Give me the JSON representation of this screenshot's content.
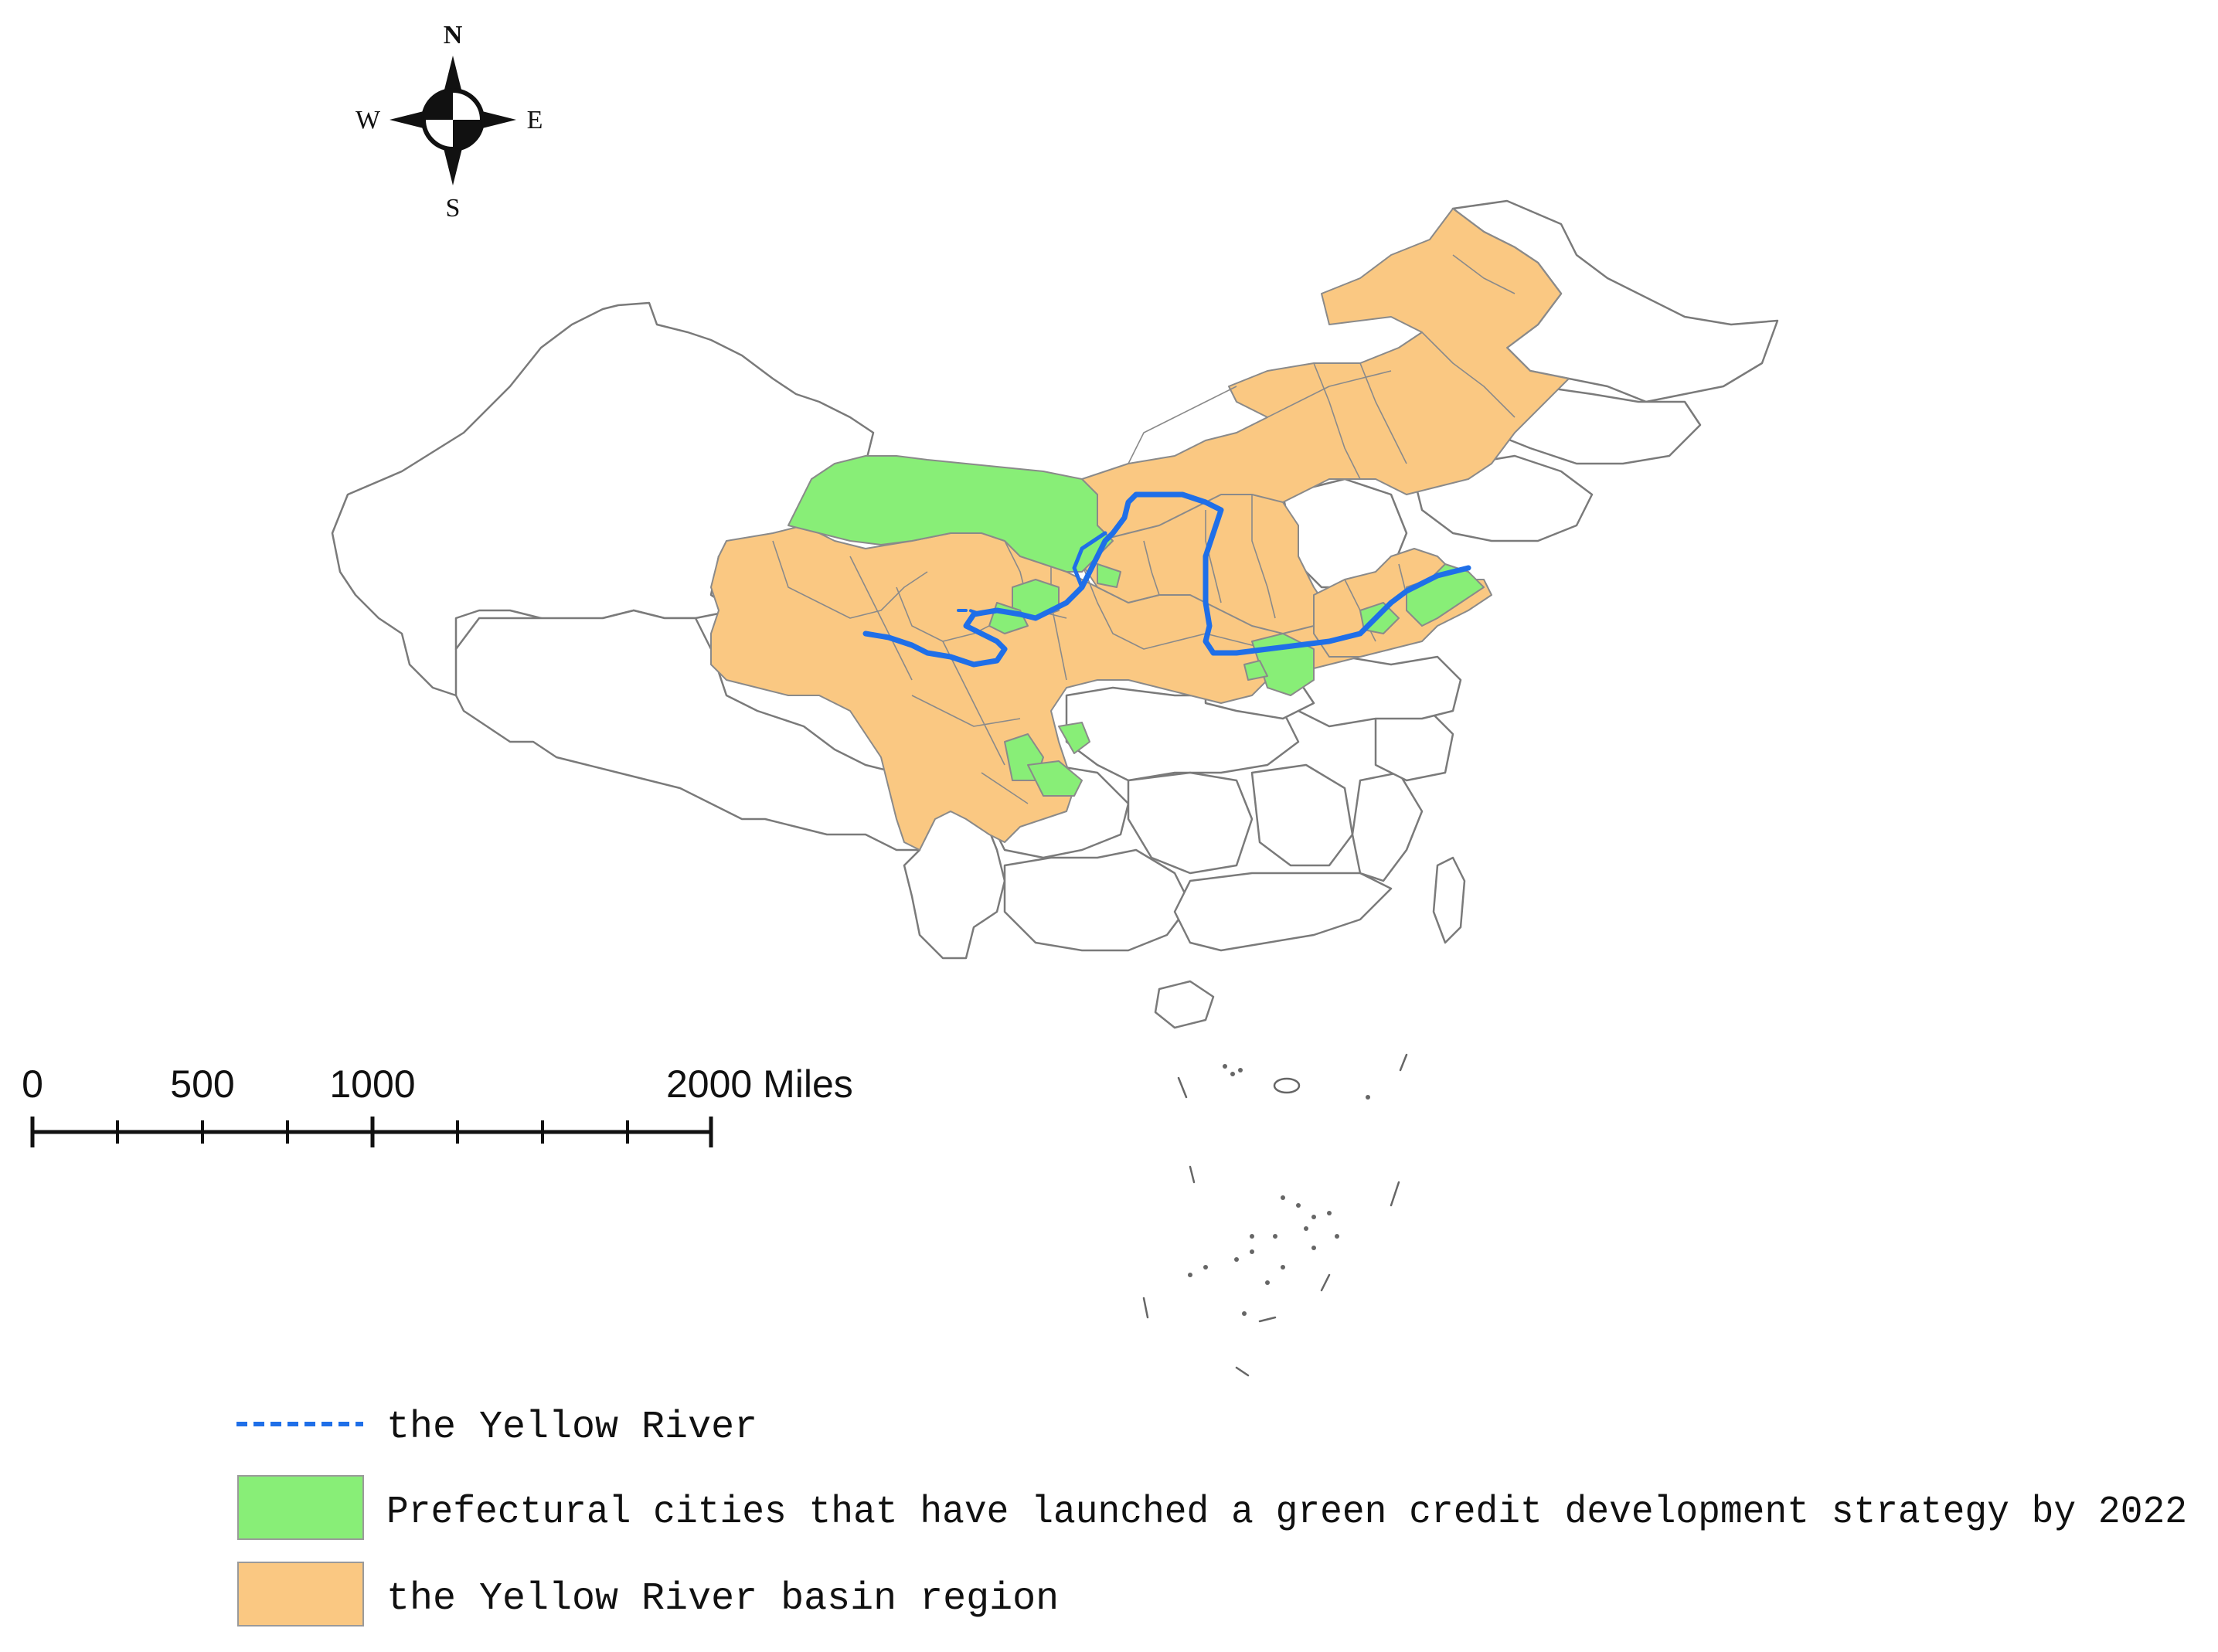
{
  "compass": {
    "north_label": "N",
    "south_label": "S",
    "east_label": "E",
    "west_label": "W"
  },
  "scale_bar": {
    "labels": [
      "0",
      "500",
      "1000",
      "2000 Miles"
    ]
  },
  "legend": {
    "items": [
      {
        "symbol": "dashed-line",
        "color": "#1f6fe8",
        "label": "the Yellow River"
      },
      {
        "symbol": "fill",
        "color": "#88ee77",
        "label": "Prefectural cities that have launched a green credit development strategy by 2022"
      },
      {
        "symbol": "fill",
        "color": "#fac882",
        "label": "the Yellow River basin region"
      }
    ]
  },
  "colors": {
    "basin": "#fac882",
    "green_credit": "#88ee77",
    "river": "#1f6fe8",
    "border": "#7a7a7a",
    "background": "#ffffff"
  }
}
